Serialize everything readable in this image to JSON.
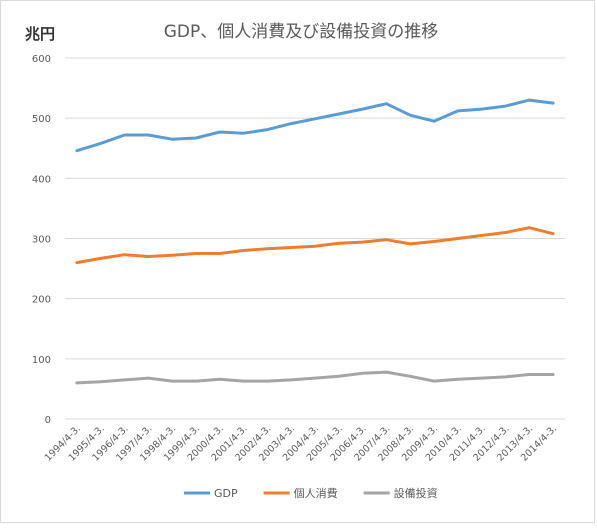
{
  "chart_data": {
    "type": "line",
    "title": "GDP、個人消費及び設備投資の推移",
    "unit_label": "兆円",
    "xlabel": "",
    "ylabel": "",
    "ylim": [
      0,
      600
    ],
    "yticks": [
      0,
      100,
      200,
      300,
      400,
      500,
      600
    ],
    "grid": true,
    "legend_position": "bottom",
    "categories": [
      "1994/4-3.",
      "1995/4-3.",
      "1996/4-3.",
      "1997/4-3.",
      "1998/4-3.",
      "1999/4-3.",
      "2000/4-3.",
      "2001/4-3.",
      "2002/4-3.",
      "2003/4-3.",
      "2004/4-3.",
      "2005/4-3.",
      "2006/4-3.",
      "2007/4-3.",
      "2008/4-3.",
      "2009/4-3.",
      "2010/4-3.",
      "2011/4-3.",
      "2012/4-3.",
      "2013/4-3.",
      "2014/4-3."
    ],
    "series": [
      {
        "name": "GDP",
        "color": "#5b9bd5",
        "values": [
          446,
          458,
          472,
          472,
          465,
          467,
          477,
          475,
          481,
          491,
          499,
          507,
          515,
          524,
          505,
          495,
          512,
          515,
          520,
          530,
          525
        ]
      },
      {
        "name": "個人消費",
        "color": "#ed7d31",
        "values": [
          260,
          267,
          273,
          270,
          272,
          275,
          275,
          280,
          283,
          285,
          287,
          292,
          294,
          298,
          291,
          295,
          300,
          305,
          310,
          318,
          308
        ]
      },
      {
        "name": "設備投資",
        "color": "#a5a5a5",
        "values": [
          60,
          62,
          65,
          68,
          63,
          63,
          66,
          63,
          63,
          65,
          68,
          71,
          76,
          78,
          71,
          63,
          66,
          68,
          70,
          74,
          74
        ]
      }
    ]
  }
}
